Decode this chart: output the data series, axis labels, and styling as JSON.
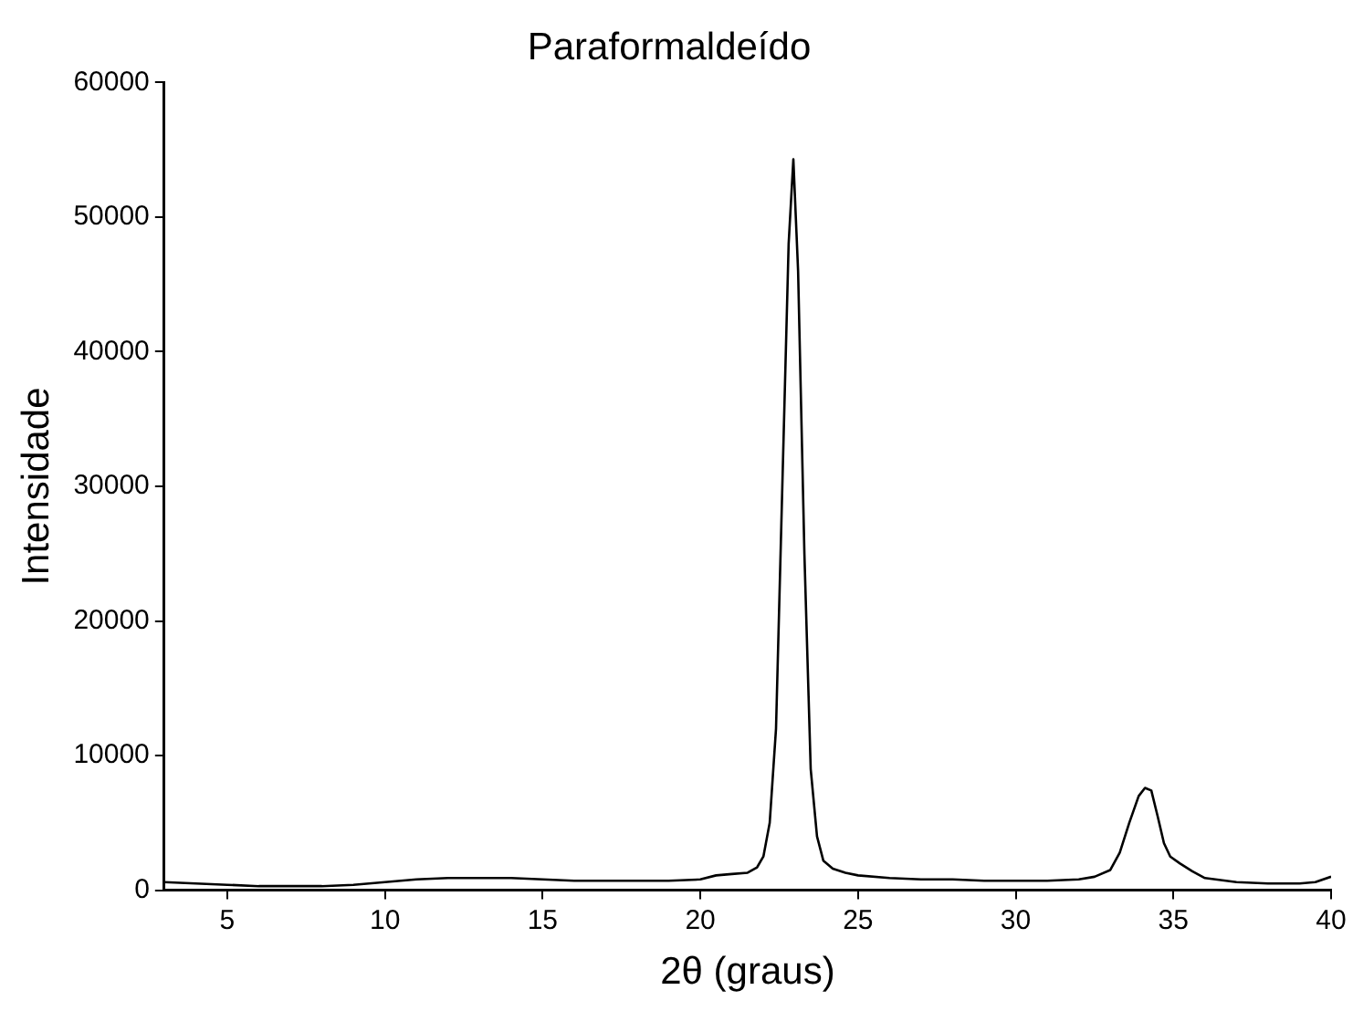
{
  "chart_data": {
    "type": "line",
    "title": "Paraformaldeído",
    "xlabel": "2θ (graus)",
    "ylabel": "Intensidade",
    "x": [
      3,
      4,
      5,
      6,
      7,
      8,
      9,
      10,
      11,
      12,
      13,
      14,
      15,
      16,
      17,
      18,
      19,
      20,
      20.5,
      21,
      21.5,
      21.8,
      22,
      22.2,
      22.4,
      22.6,
      22.8,
      22.95,
      23.1,
      23.3,
      23.5,
      23.7,
      23.9,
      24.2,
      24.6,
      25,
      26,
      27,
      28,
      29,
      30,
      31,
      32,
      32.5,
      33,
      33.3,
      33.6,
      33.9,
      34.1,
      34.3,
      34.5,
      34.7,
      34.9,
      35.2,
      35.6,
      36,
      37,
      38,
      39,
      39.5,
      40
    ],
    "series": [
      {
        "color": "#000000",
        "values": [
          600,
          500,
          400,
          300,
          300,
          300,
          400,
          600,
          800,
          900,
          900,
          900,
          800,
          700,
          700,
          700,
          700,
          800,
          1100,
          1200,
          1300,
          1700,
          2500,
          5000,
          12000,
          30000,
          48000,
          54300,
          46000,
          25000,
          9000,
          4000,
          2200,
          1600,
          1300,
          1100,
          900,
          800,
          800,
          700,
          700,
          700,
          800,
          1000,
          1500,
          2800,
          5000,
          7000,
          7600,
          7400,
          5500,
          3500,
          2500,
          2000,
          1400,
          900,
          600,
          500,
          500,
          600,
          1000
        ]
      }
    ],
    "xlim": [
      3,
      40
    ],
    "xticks": [
      5,
      10,
      15,
      20,
      25,
      30,
      35,
      40
    ],
    "ylim": [
      0,
      60000
    ],
    "yticks": [
      0,
      10000,
      20000,
      30000,
      40000,
      50000,
      60000
    ],
    "grid": false,
    "legend": false,
    "marker": "none",
    "line_style": "solid"
  }
}
